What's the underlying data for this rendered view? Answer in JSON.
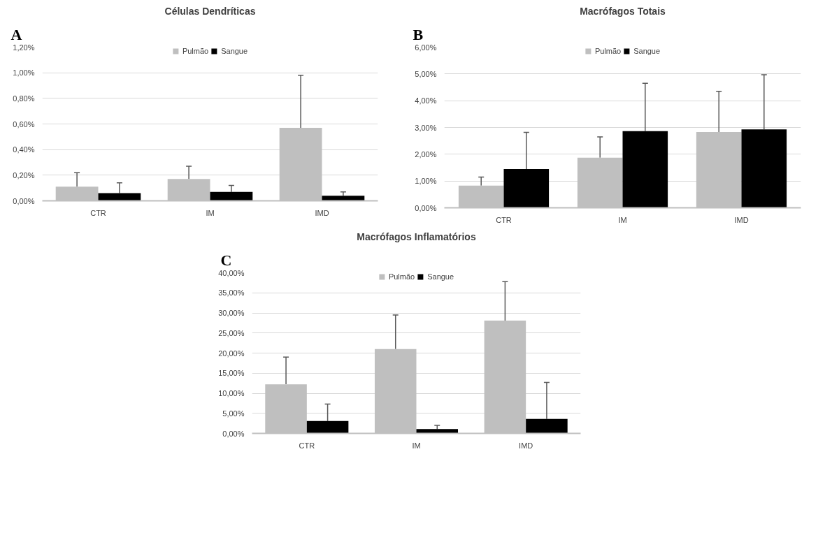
{
  "chart_data": [
    {
      "type": "bar",
      "title": "Células Dendríticas",
      "annotations": [
        "A"
      ],
      "categories": [
        "CTR",
        "IM",
        "IMD"
      ],
      "legend": "top",
      "grid": "y",
      "ylim": [
        0,
        1.2
      ],
      "yticks": [
        {
          "value": 0,
          "label": "0,00%"
        },
        {
          "value": 0.2,
          "label": "0,20%"
        },
        {
          "value": 0.4,
          "label": "0,40%"
        },
        {
          "value": 0.6,
          "label": "0,60%"
        },
        {
          "value": 0.8,
          "label": "0,80%"
        },
        {
          "value": 1.0,
          "label": "1,00%"
        },
        {
          "value": 1.2,
          "label": "1,20%"
        }
      ],
      "series": [
        {
          "name": "Pulmão",
          "color": "#bfbfbf",
          "values": [
            0.11,
            0.17,
            0.57
          ],
          "errors": [
            [
              0.11,
              0.22
            ],
            [
              0.17,
              0.27
            ],
            [
              0.57,
              0.98
            ]
          ]
        },
        {
          "name": "Sangue",
          "color": "#000000",
          "values": [
            0.06,
            0.07,
            0.04
          ],
          "errors": [
            [
              0.06,
              0.14
            ],
            [
              0.07,
              0.12
            ],
            [
              0.04,
              0.07
            ]
          ]
        }
      ]
    },
    {
      "type": "bar",
      "title": "Macrófagos Totais",
      "annotations": [
        "B"
      ],
      "categories": [
        "CTR",
        "IM",
        "IMD"
      ],
      "legend": "top",
      "grid": "y",
      "ylim": [
        0,
        6
      ],
      "yticks": [
        {
          "value": 0,
          "label": "0,00%"
        },
        {
          "value": 1,
          "label": "1,00%"
        },
        {
          "value": 2,
          "label": "2,00%"
        },
        {
          "value": 3,
          "label": "3,00%"
        },
        {
          "value": 4,
          "label": "4,00%"
        },
        {
          "value": 5,
          "label": "5,00%"
        },
        {
          "value": 6,
          "label": "6,00%"
        }
      ],
      "series": [
        {
          "name": "Pulmão",
          "color": "#bfbfbf",
          "values": [
            0.83,
            1.87,
            2.83
          ],
          "errors": [
            [
              0.83,
              1.15
            ],
            [
              1.87,
              2.65
            ],
            [
              2.83,
              4.35
            ]
          ]
        },
        {
          "name": "Sangue",
          "color": "#000000",
          "values": [
            1.45,
            2.86,
            2.93
          ],
          "errors": [
            [
              1.45,
              2.82
            ],
            [
              2.86,
              4.65
            ],
            [
              2.93,
              4.97
            ]
          ]
        }
      ]
    },
    {
      "type": "bar",
      "title": "Macrófagos Inflamatórios",
      "annotations": [
        "C"
      ],
      "categories": [
        "CTR",
        "IM",
        "IMD"
      ],
      "legend": "top",
      "grid": "y",
      "ylim": [
        0,
        40
      ],
      "yticks": [
        {
          "value": 0,
          "label": "0,00%"
        },
        {
          "value": 5,
          "label": "5,00%"
        },
        {
          "value": 10,
          "label": "10,00%"
        },
        {
          "value": 15,
          "label": "15,00%"
        },
        {
          "value": 20,
          "label": "20,00%"
        },
        {
          "value": 25,
          "label": "25,00%"
        },
        {
          "value": 30,
          "label": "30,00%"
        },
        {
          "value": 35,
          "label": "35,00%"
        },
        {
          "value": 40,
          "label": "40,00%"
        }
      ],
      "series": [
        {
          "name": "Pulmão",
          "color": "#bfbfbf",
          "values": [
            12.2,
            21.0,
            28.1
          ],
          "errors": [
            [
              12.2,
              19.0
            ],
            [
              21.0,
              29.5
            ],
            [
              28.1,
              37.8
            ]
          ]
        },
        {
          "name": "Sangue",
          "color": "#000000",
          "values": [
            3.1,
            1.1,
            3.6
          ],
          "errors": [
            [
              3.1,
              7.3
            ],
            [
              1.1,
              2.0
            ],
            [
              3.6,
              12.7
            ]
          ]
        }
      ]
    }
  ]
}
